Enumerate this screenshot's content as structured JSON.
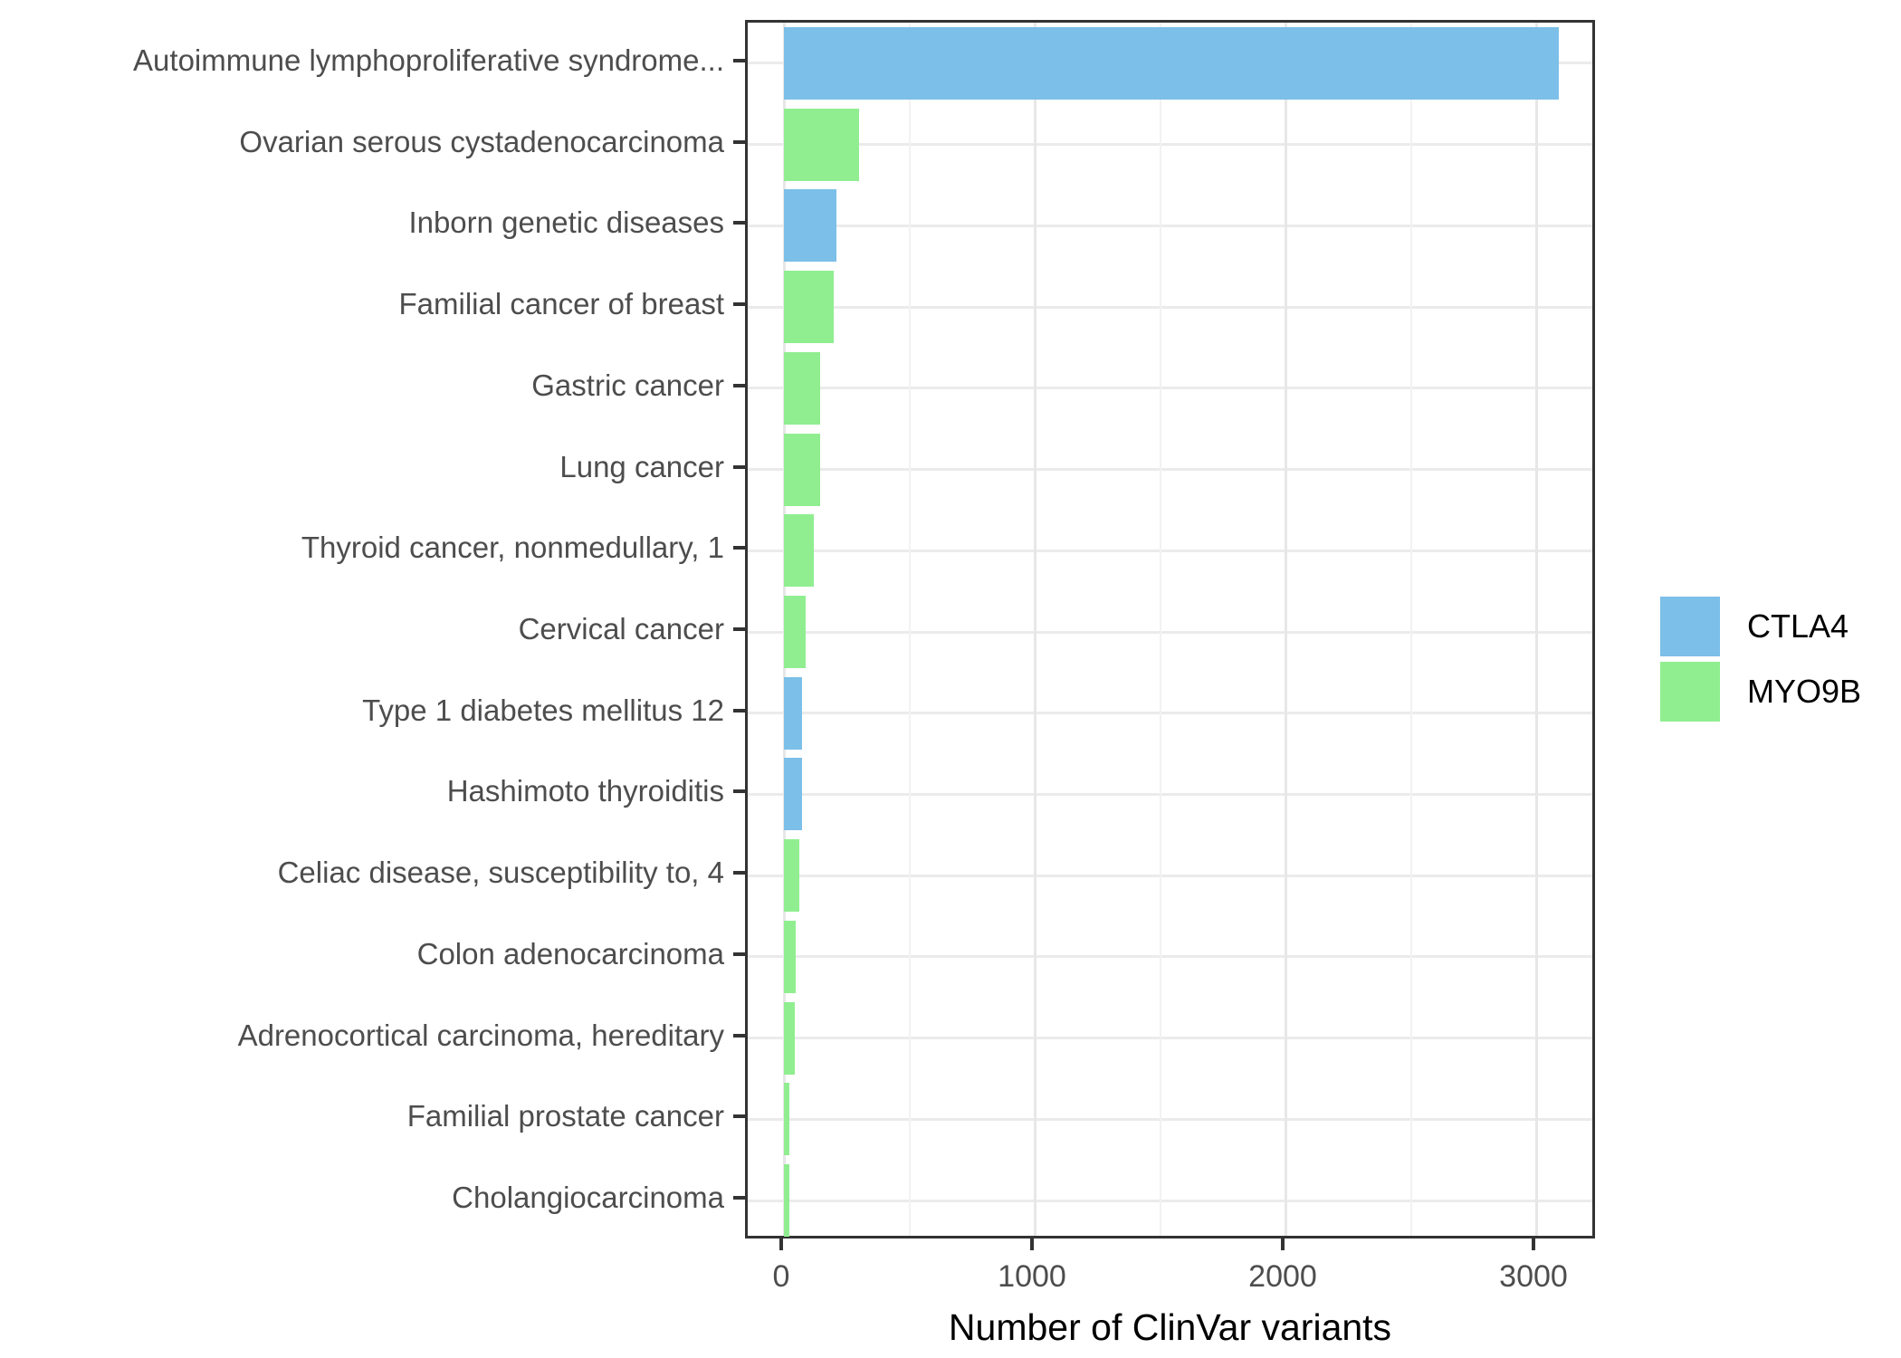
{
  "chart_data": {
    "type": "bar",
    "orientation": "horizontal",
    "title": "",
    "xlabel": "Number of ClinVar variants",
    "ylabel": "",
    "x_ticks": [
      0,
      1000,
      2000,
      3000
    ],
    "x_minor_ticks": [
      500,
      1500,
      2500
    ],
    "xlim": [
      0,
      3245
    ],
    "grid": "on",
    "legend_position": "right-center",
    "legend": [
      "CTLA4",
      "MYO9B"
    ],
    "series_colors": {
      "CTLA4": "#7cbfe8",
      "MYO9B": "#90ee90"
    },
    "categories": [
      "Autoimmune lymphoproliferative syndrome...",
      "Ovarian serous cystadenocarcinoma",
      "Inborn genetic diseases",
      "Familial cancer of breast",
      "Gastric cancer",
      "Lung cancer",
      "Thyroid cancer, nonmedullary, 1",
      "Cervical cancer",
      "Type 1 diabetes mellitus 12",
      "Hashimoto thyroiditis",
      "Celiac disease, susceptibility to, 4",
      "Colon adenocarcinoma",
      "Adrenocortical carcinoma, hereditary",
      "Familial prostate cancer",
      "Cholangiocarcinoma"
    ],
    "bars": [
      {
        "label": "Autoimmune lymphoproliferative syndrome...",
        "gene": "CTLA4",
        "value": 3090
      },
      {
        "label": "Ovarian serous cystadenocarcinoma",
        "gene": "MYO9B",
        "value": 300
      },
      {
        "label": "Inborn genetic diseases",
        "gene": "CTLA4",
        "value": 210
      },
      {
        "label": "Familial cancer of breast",
        "gene": "MYO9B",
        "value": 200
      },
      {
        "label": "Gastric cancer",
        "gene": "MYO9B",
        "value": 145
      },
      {
        "label": "Lung cancer",
        "gene": "MYO9B",
        "value": 143
      },
      {
        "label": "Thyroid cancer, nonmedullary, 1",
        "gene": "MYO9B",
        "value": 120
      },
      {
        "label": "Cervical cancer",
        "gene": "MYO9B",
        "value": 85
      },
      {
        "label": "Type 1 diabetes mellitus 12",
        "gene": "CTLA4",
        "value": 72
      },
      {
        "label": "Hashimoto thyroiditis",
        "gene": "CTLA4",
        "value": 71
      },
      {
        "label": "Celiac disease, susceptibility to, 4",
        "gene": "MYO9B",
        "value": 60
      },
      {
        "label": "Colon adenocarcinoma",
        "gene": "MYO9B",
        "value": 47
      },
      {
        "label": "Adrenocortical carcinoma, hereditary",
        "gene": "MYO9B",
        "value": 44
      },
      {
        "label": "Familial prostate cancer",
        "gene": "MYO9B",
        "value": 22
      },
      {
        "label": "Cholangiocarcinoma",
        "gene": "MYO9B",
        "value": 20
      }
    ]
  }
}
